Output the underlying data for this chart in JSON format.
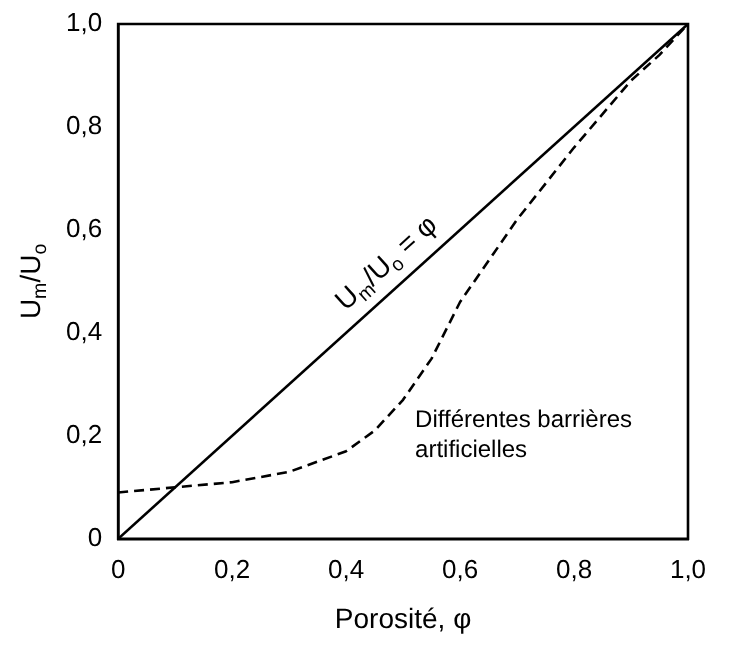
{
  "chart_data": {
    "type": "line",
    "xlabel": "Porosité, φ",
    "ylabel": "U$_{m}$/U$_{o}$",
    "xlim": [
      0,
      1
    ],
    "ylim": [
      0,
      1
    ],
    "xticks": [
      0,
      {
        "value": 0.2,
        "label": "0,2"
      },
      {
        "value": 0.4,
        "label": "0,4"
      },
      {
        "value": 0.6,
        "label": "0,6"
      },
      {
        "value": 0.8,
        "label": "0,8"
      },
      {
        "value": 1,
        "label": "1,0"
      }
    ],
    "yticks": [
      0,
      {
        "value": 0.2,
        "label": "0,2"
      },
      {
        "value": 0.4,
        "label": "0,4"
      },
      {
        "value": 0.6,
        "label": "0,6"
      },
      {
        "value": 0.8,
        "label": "0,8"
      },
      {
        "value": 1,
        "label": "1,0"
      }
    ],
    "grid": false,
    "legend": false,
    "marker": "none",
    "series": [
      {
        "color": "#000000",
        "line_style": "solid",
        "x": [
          0,
          1
        ],
        "values": [
          0,
          1
        ]
      },
      {
        "color": "#000000",
        "line_style": "dashed",
        "x": [
          0,
          0.1,
          0.2,
          0.3,
          0.4,
          0.45,
          0.5,
          0.55,
          0.6,
          0.7,
          0.8,
          0.9,
          0.95,
          1
        ],
        "values": [
          0.09,
          0.1,
          0.11,
          0.13,
          0.17,
          0.21,
          0.27,
          0.35,
          0.46,
          0.62,
          0.76,
          0.89,
          0.94,
          1
        ]
      }
    ],
    "annotations": [
      "U$_{m}$/U$_{o}$ = φ",
      "Différentes barrières artificielles"
    ]
  }
}
